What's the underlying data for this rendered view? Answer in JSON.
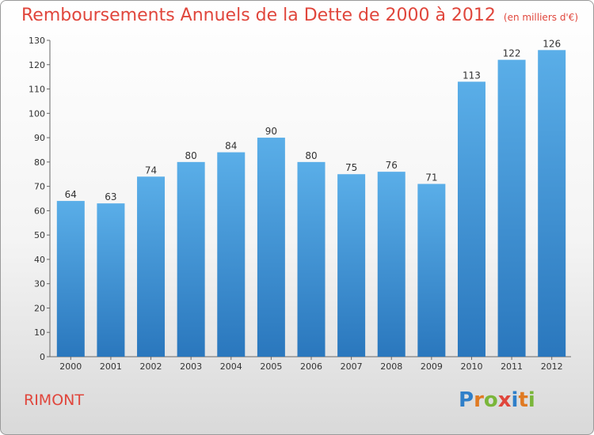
{
  "chart_data": {
    "type": "bar",
    "title": "Remboursements Annuels de la Dette de 2000 à 2012",
    "subtitle": "(en milliers d'€)",
    "categories": [
      "2000",
      "2001",
      "2002",
      "2003",
      "2004",
      "2005",
      "2006",
      "2007",
      "2008",
      "2009",
      "2010",
      "2011",
      "2012"
    ],
    "values": [
      64,
      63,
      74,
      80,
      84,
      90,
      80,
      75,
      76,
      71,
      113,
      122,
      126
    ],
    "xlabel": "",
    "ylabel": "",
    "ylim": [
      0,
      130
    ],
    "yticks": [
      0,
      10,
      20,
      30,
      40,
      50,
      60,
      70,
      80,
      90,
      100,
      110,
      120,
      130
    ],
    "grid": false,
    "bar_color": "#3f93d8"
  },
  "place_name": "RIMONT",
  "logo": {
    "letters": [
      "P",
      "r",
      "o",
      "x",
      "i",
      "t",
      "i"
    ],
    "colors": [
      "#2f7fc9",
      "#e07a22",
      "#7ab63a",
      "#e0463c",
      "#2f7fc9",
      "#e07a22",
      "#7ab63a"
    ]
  }
}
